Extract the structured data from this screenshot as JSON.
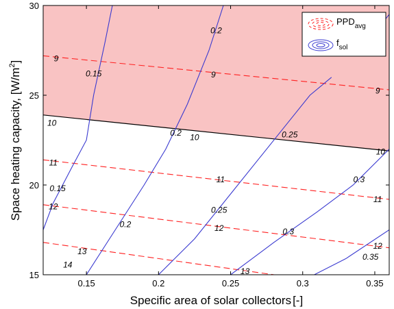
{
  "chart_data": {
    "type": "contour",
    "xlabel": "Specific area of solar collectors",
    "xlabel_unit": "[-]",
    "ylabel": "Space heating capacity, [W/m",
    "ylabel_sup": "2",
    "ylabel_end": "]",
    "xlim": [
      0.12,
      0.36
    ],
    "ylim": [
      15,
      30
    ],
    "xticks": [
      0.15,
      0.2,
      0.25,
      0.3,
      0.35
    ],
    "xtick_labels": [
      "0.15",
      "0.2",
      "0.25",
      "0.3",
      "0.35"
    ],
    "yticks": [
      15,
      20,
      25,
      30
    ],
    "ytick_labels": [
      "15",
      "20",
      "25",
      "30"
    ],
    "grid": false,
    "legend_position": "top-right",
    "legend": [
      {
        "name": "PPD",
        "sub": "avg",
        "color": "#ff2020",
        "style": "dashed"
      },
      {
        "name": "f",
        "sub": "sol",
        "color": "#3a3ad0",
        "style": "solid"
      }
    ],
    "shaded_region": {
      "color": "#f9c3c3",
      "boundary": [
        [
          0.12,
          23.9
        ],
        [
          0.36,
          21.9
        ]
      ],
      "boundary_label": "10",
      "fill_to": "top"
    },
    "series": [
      {
        "name": "PPD_avg",
        "level": "9",
        "color": "#ff2020",
        "style": "dashed",
        "points": [
          [
            0.12,
            27.2
          ],
          [
            0.36,
            25.3
          ]
        ],
        "labels": [
          {
            "text": "9",
            "at": [
              0.129,
              27.05
            ]
          },
          {
            "text": "9",
            "at": [
              0.238,
              26.15
            ]
          },
          {
            "text": "9",
            "at": [
              0.352,
              25.25
            ]
          }
        ]
      },
      {
        "name": "PPD_avg",
        "level": "11",
        "color": "#ff2020",
        "style": "dashed",
        "points": [
          [
            0.12,
            21.4
          ],
          [
            0.36,
            19.2
          ]
        ],
        "labels": [
          {
            "text": "11",
            "at": [
              0.127,
              21.25
            ]
          },
          {
            "text": "11",
            "at": [
              0.243,
              20.3
            ]
          },
          {
            "text": "11",
            "at": [
              0.352,
              19.2
            ]
          }
        ]
      },
      {
        "name": "PPD_avg",
        "level": "12",
        "color": "#ff2020",
        "style": "dashed",
        "points": [
          [
            0.12,
            18.9
          ],
          [
            0.36,
            16.5
          ]
        ],
        "labels": [
          {
            "text": "12",
            "at": [
              0.127,
              18.8
            ]
          },
          {
            "text": "12",
            "at": [
              0.242,
              17.6
            ]
          },
          {
            "text": "12",
            "at": [
              0.352,
              16.6
            ]
          }
        ]
      },
      {
        "name": "PPD_avg",
        "level": "13",
        "color": "#ff2020",
        "style": "dashed",
        "points": [
          [
            0.12,
            16.8
          ],
          [
            0.36,
            14.1
          ]
        ],
        "labels": [
          {
            "text": "13",
            "at": [
              0.147,
              16.3
            ]
          },
          {
            "text": "13",
            "at": [
              0.26,
              15.2
            ]
          }
        ]
      },
      {
        "name": "PPD_avg",
        "level": "14",
        "color": "#ff2020",
        "style": "dashed",
        "points": [
          [
            0.12,
            14.8
          ],
          [
            0.19,
            14.0
          ]
        ],
        "labels": [
          {
            "text": "14",
            "at": [
              0.137,
              15.55
            ]
          }
        ]
      },
      {
        "name": "f_sol",
        "level": "0.15",
        "color": "#3a3ad0",
        "style": "solid",
        "points": [
          [
            0.12,
            17.5
          ],
          [
            0.127,
            19.0
          ],
          [
            0.14,
            21.0
          ],
          [
            0.15,
            22.5
          ],
          [
            0.155,
            25.0
          ],
          [
            0.163,
            28.0
          ],
          [
            0.168,
            30.0
          ]
        ],
        "labels": [
          {
            "text": "0.15",
            "at": [
              0.155,
              26.2
            ]
          },
          {
            "text": "0.15",
            "at": [
              0.13,
              19.8
            ]
          }
        ]
      },
      {
        "name": "f_sol",
        "level": "0.2",
        "color": "#3a3ad0",
        "style": "solid",
        "points": [
          [
            0.15,
            15.0
          ],
          [
            0.17,
            17.5
          ],
          [
            0.19,
            20.0
          ],
          [
            0.205,
            22.0
          ],
          [
            0.22,
            24.5
          ],
          [
            0.235,
            27.5
          ],
          [
            0.245,
            30.0
          ]
        ],
        "labels": [
          {
            "text": "0.2",
            "at": [
              0.177,
              17.8
            ]
          },
          {
            "text": "0.2",
            "at": [
              0.212,
              22.9
            ]
          },
          {
            "text": "0.2",
            "at": [
              0.24,
              28.6
            ]
          }
        ]
      },
      {
        "name": "f_sol",
        "level": "0.25",
        "color": "#3a3ad0",
        "style": "solid",
        "points": [
          [
            0.2,
            15.0
          ],
          [
            0.225,
            17.0
          ],
          [
            0.25,
            19.5
          ],
          [
            0.27,
            21.5
          ],
          [
            0.29,
            23.5
          ],
          [
            0.305,
            25.0
          ],
          [
            0.32,
            26.0
          ]
        ],
        "labels": [
          {
            "text": "0.25",
            "at": [
              0.242,
              18.6
            ]
          },
          {
            "text": "0.25",
            "at": [
              0.291,
              22.8
            ]
          }
        ]
      },
      {
        "name": "f_sol",
        "level": "0.3",
        "color": "#3a3ad0",
        "style": "solid",
        "points": [
          [
            0.25,
            15.0
          ],
          [
            0.28,
            16.8
          ],
          [
            0.31,
            18.5
          ],
          [
            0.335,
            20.0
          ],
          [
            0.36,
            22.0
          ]
        ],
        "labels": [
          {
            "text": "0.3",
            "at": [
              0.29,
              17.4
            ]
          },
          {
            "text": "0.3",
            "at": [
              0.339,
              20.3
            ]
          }
        ]
      },
      {
        "name": "f_sol",
        "level": "0.35",
        "color": "#3a3ad0",
        "style": "solid",
        "points": [
          [
            0.308,
            15.0
          ],
          [
            0.33,
            15.9
          ],
          [
            0.36,
            17.5
          ]
        ],
        "labels": [
          {
            "text": "0.35",
            "at": [
              0.347,
              16.0
            ]
          }
        ]
      },
      {
        "name": "f_sol",
        "level": "",
        "color": "#3a3ad0",
        "style": "solid",
        "points": [
          [
            0.34,
            27.5
          ],
          [
            0.35,
            28.5
          ],
          [
            0.36,
            29.5
          ]
        ],
        "labels": []
      }
    ]
  }
}
